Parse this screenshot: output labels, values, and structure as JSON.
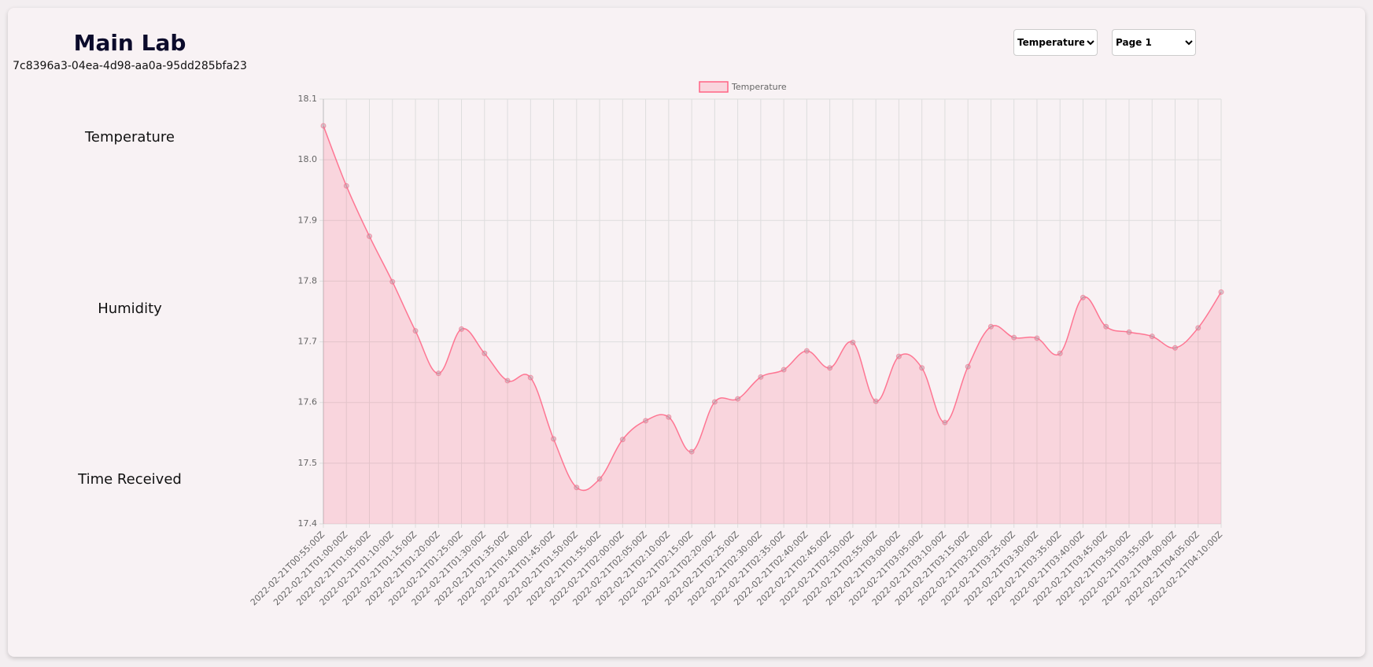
{
  "header": {
    "title": "Main Lab",
    "device_id": "7c8396a3-04ea-4d98-aa0a-95dd285bfa23"
  },
  "sidebar": {
    "labels": [
      "Temperature",
      "Humidity",
      "Time Received"
    ]
  },
  "controls": {
    "metric": "Temperature",
    "page": "Page 1"
  },
  "chart_data": {
    "type": "line",
    "fill": true,
    "grid": true,
    "legend": "top",
    "categories": [
      "2022-02-21T00:55:00Z",
      "2022-02-21T01:00:00Z",
      "2022-02-21T01:05:00Z",
      "2022-02-21T01:10:00Z",
      "2022-02-21T01:15:00Z",
      "2022-02-21T01:20:00Z",
      "2022-02-21T01:25:00Z",
      "2022-02-21T01:30:00Z",
      "2022-02-21T01:35:00Z",
      "2022-02-21T01:40:00Z",
      "2022-02-21T01:45:00Z",
      "2022-02-21T01:50:00Z",
      "2022-02-21T01:55:00Z",
      "2022-02-21T02:00:00Z",
      "2022-02-21T02:05:00Z",
      "2022-02-21T02:10:00Z",
      "2022-02-21T02:15:00Z",
      "2022-02-21T02:20:00Z",
      "2022-02-21T02:25:00Z",
      "2022-02-21T02:30:00Z",
      "2022-02-21T02:35:00Z",
      "2022-02-21T02:40:00Z",
      "2022-02-21T02:45:00Z",
      "2022-02-21T02:50:00Z",
      "2022-02-21T02:55:00Z",
      "2022-02-21T03:00:00Z",
      "2022-02-21T03:05:00Z",
      "2022-02-21T03:10:00Z",
      "2022-02-21T03:15:00Z",
      "2022-02-21T03:20:00Z",
      "2022-02-21T03:25:00Z",
      "2022-02-21T03:30:00Z",
      "2022-02-21T03:35:00Z",
      "2022-02-21T03:40:00Z",
      "2022-02-21T03:45:00Z",
      "2022-02-21T03:50:00Z",
      "2022-02-21T03:55:00Z",
      "2022-02-21T04:00:00Z",
      "2022-02-21T04:05:00Z",
      "2022-02-21T04:10:00Z"
    ],
    "series": [
      {
        "name": "Temperature",
        "color": "#ff6384",
        "values": [
          18.056,
          17.957,
          17.874,
          17.799,
          17.718,
          17.648,
          17.721,
          17.681,
          17.636,
          17.641,
          17.54,
          17.46,
          17.474,
          17.539,
          17.57,
          17.576,
          17.519,
          17.601,
          17.606,
          17.642,
          17.654,
          17.685,
          17.657,
          17.699,
          17.602,
          17.676,
          17.657,
          17.567,
          17.659,
          17.725,
          17.707,
          17.706,
          17.681,
          17.773,
          17.725,
          17.716,
          17.709,
          17.69,
          17.723,
          17.782
        ]
      }
    ],
    "ylim": [
      17.4,
      18.1
    ],
    "yticks": [
      17.4,
      17.5,
      17.6,
      17.7,
      17.8,
      17.9,
      {
        "value": 18,
        "label": "18.0"
      },
      18.1
    ]
  }
}
